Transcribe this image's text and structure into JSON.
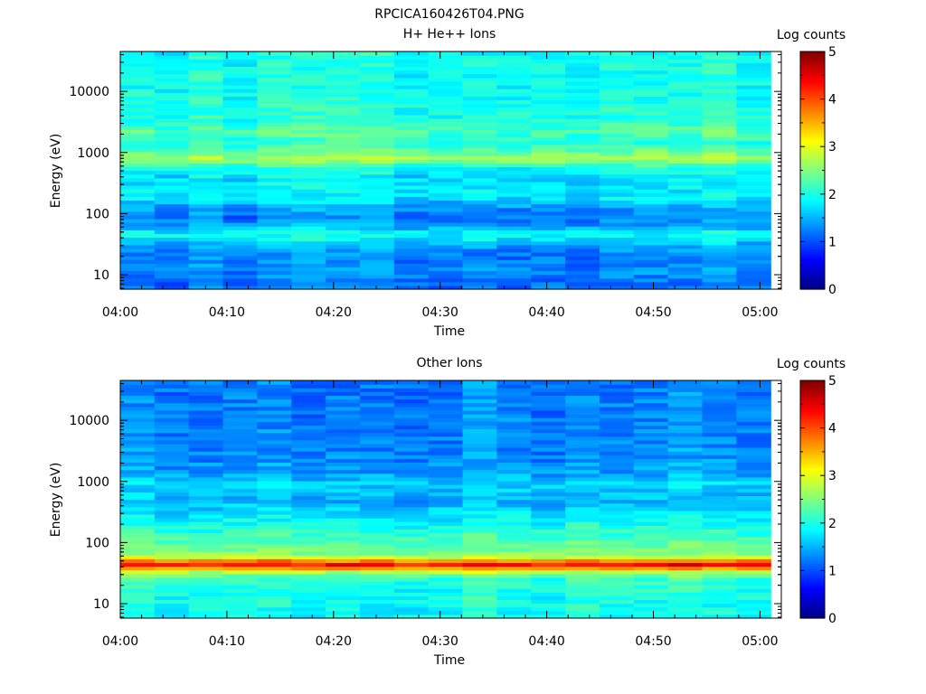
{
  "figure_title": "RPCICA160426T04.PNG",
  "colorbar_range": [
    0,
    5
  ],
  "chart_data": [
    {
      "type": "heatmap",
      "title": "H+ He++ Ions",
      "xlabel": "Time",
      "ylabel": "Energy (eV)",
      "colorbar_label": "Log counts",
      "colorbar_ticks": [
        "0",
        "1",
        "2",
        "3",
        "4",
        "5"
      ],
      "x_ticks": [
        "04:00",
        "04:10",
        "04:20",
        "04:30",
        "04:40",
        "04:50",
        "05:00"
      ],
      "y_ticks": [
        "10",
        "100",
        "1000",
        "10000"
      ],
      "y_scale": "log",
      "ylim_eV": [
        5.8,
        45000
      ],
      "time_range": [
        "04:00",
        "05:02"
      ],
      "data_end_time": "05:01",
      "time_bins": 19,
      "energy_profile_log_counts": [
        {
          "energy_eV": 8,
          "value": 1.2
        },
        {
          "energy_eV": 12,
          "value": 1.35
        },
        {
          "energy_eV": 18,
          "value": 1.25
        },
        {
          "energy_eV": 25,
          "value": 1.3
        },
        {
          "energy_eV": 32,
          "value": 1.5
        },
        {
          "energy_eV": 40,
          "value": 1.85
        },
        {
          "energy_eV": 48,
          "value": 1.95
        },
        {
          "energy_eV": 55,
          "value": 1.7
        },
        {
          "energy_eV": 70,
          "value": 1.35
        },
        {
          "energy_eV": 90,
          "value": 1.25
        },
        {
          "energy_eV": 120,
          "value": 1.4
        },
        {
          "energy_eV": 170,
          "value": 1.75
        },
        {
          "energy_eV": 250,
          "value": 1.8
        },
        {
          "energy_eV": 400,
          "value": 1.75
        },
        {
          "energy_eV": 600,
          "value": 2.05
        },
        {
          "energy_eV": 800,
          "value": 2.75
        },
        {
          "energy_eV": 1000,
          "value": 2.45
        },
        {
          "energy_eV": 1500,
          "value": 2.05
        },
        {
          "energy_eV": 2200,
          "value": 2.3
        },
        {
          "energy_eV": 3500,
          "value": 2.05
        },
        {
          "energy_eV": 10000,
          "value": 1.95
        },
        {
          "energy_eV": 40000,
          "value": 1.95
        }
      ]
    },
    {
      "type": "heatmap",
      "title": "Other Ions",
      "xlabel": "Time",
      "ylabel": "Energy (eV)",
      "colorbar_label": "Log counts",
      "colorbar_ticks": [
        "0",
        "1",
        "2",
        "3",
        "4",
        "5"
      ],
      "x_ticks": [
        "04:00",
        "04:10",
        "04:20",
        "04:30",
        "04:40",
        "04:50",
        "05:00"
      ],
      "y_ticks": [
        "10",
        "100",
        "1000",
        "10000"
      ],
      "y_scale": "log",
      "ylim_eV": [
        5.8,
        45000
      ],
      "time_range": [
        "04:00",
        "05:02"
      ],
      "data_end_time": "05:01",
      "time_bins": 19,
      "energy_profile_log_counts": [
        {
          "energy_eV": 8,
          "value": 1.95
        },
        {
          "energy_eV": 15,
          "value": 2.0
        },
        {
          "energy_eV": 25,
          "value": 2.1
        },
        {
          "energy_eV": 33,
          "value": 2.7
        },
        {
          "energy_eV": 38,
          "value": 3.6
        },
        {
          "energy_eV": 43,
          "value": 4.4
        },
        {
          "energy_eV": 48,
          "value": 4.2
        },
        {
          "energy_eV": 55,
          "value": 3.1
        },
        {
          "energy_eV": 70,
          "value": 2.5
        },
        {
          "energy_eV": 100,
          "value": 2.3
        },
        {
          "energy_eV": 170,
          "value": 2.05
        },
        {
          "energy_eV": 300,
          "value": 1.75
        },
        {
          "energy_eV": 500,
          "value": 1.5
        },
        {
          "energy_eV": 900,
          "value": 1.7
        },
        {
          "energy_eV": 1500,
          "value": 1.4
        },
        {
          "energy_eV": 5000,
          "value": 1.3
        },
        {
          "energy_eV": 40000,
          "value": 1.25
        }
      ]
    }
  ]
}
